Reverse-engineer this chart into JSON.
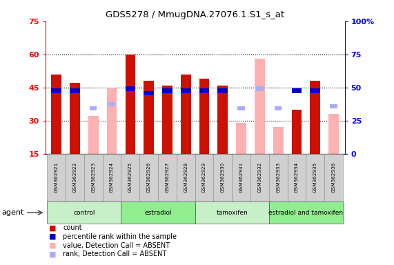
{
  "title": "GDS5278 / MmugDNA.27076.1.S1_s_at",
  "samples": [
    "GSM362921",
    "GSM362922",
    "GSM362923",
    "GSM362924",
    "GSM362925",
    "GSM362926",
    "GSM362927",
    "GSM362928",
    "GSM362929",
    "GSM362930",
    "GSM362931",
    "GSM362932",
    "GSM362933",
    "GSM362934",
    "GSM362935",
    "GSM362936"
  ],
  "count_present": [
    51,
    47,
    null,
    null,
    60,
    48,
    46,
    51,
    49,
    46,
    null,
    null,
    null,
    35,
    48,
    null
  ],
  "count_absent": [
    null,
    null,
    32,
    45,
    null,
    null,
    null,
    null,
    null,
    null,
    29,
    58,
    27,
    null,
    null,
    33
  ],
  "rank_present": [
    43,
    43,
    null,
    null,
    44,
    42,
    43,
    43,
    43,
    43,
    null,
    null,
    null,
    43,
    43,
    null
  ],
  "rank_absent": [
    null,
    null,
    35,
    37,
    null,
    null,
    null,
    null,
    null,
    null,
    35,
    44,
    35,
    null,
    null,
    36
  ],
  "groups": [
    {
      "label": "control",
      "start": 0,
      "end": 4,
      "color": "#c8f0c8"
    },
    {
      "label": "estradiol",
      "start": 4,
      "end": 8,
      "color": "#90ee90"
    },
    {
      "label": "tamoxifen",
      "start": 8,
      "end": 12,
      "color": "#c8f0c8"
    },
    {
      "label": "estradiol and tamoxifen",
      "start": 12,
      "end": 16,
      "color": "#90ee90"
    }
  ],
  "ylim": [
    15,
    75
  ],
  "yticks": [
    15,
    30,
    45,
    60,
    75
  ],
  "right_yticks": [
    0,
    25,
    50,
    75,
    100
  ],
  "right_ytick_labels": [
    "0",
    "25",
    "50",
    "75",
    "100%"
  ],
  "bar_color_present": "#cc1100",
  "bar_color_absent": "#ffb0b0",
  "rank_color_present": "#0000cc",
  "rank_color_absent": "#aaaaff",
  "bar_width": 0.55,
  "agent_label": "agent"
}
